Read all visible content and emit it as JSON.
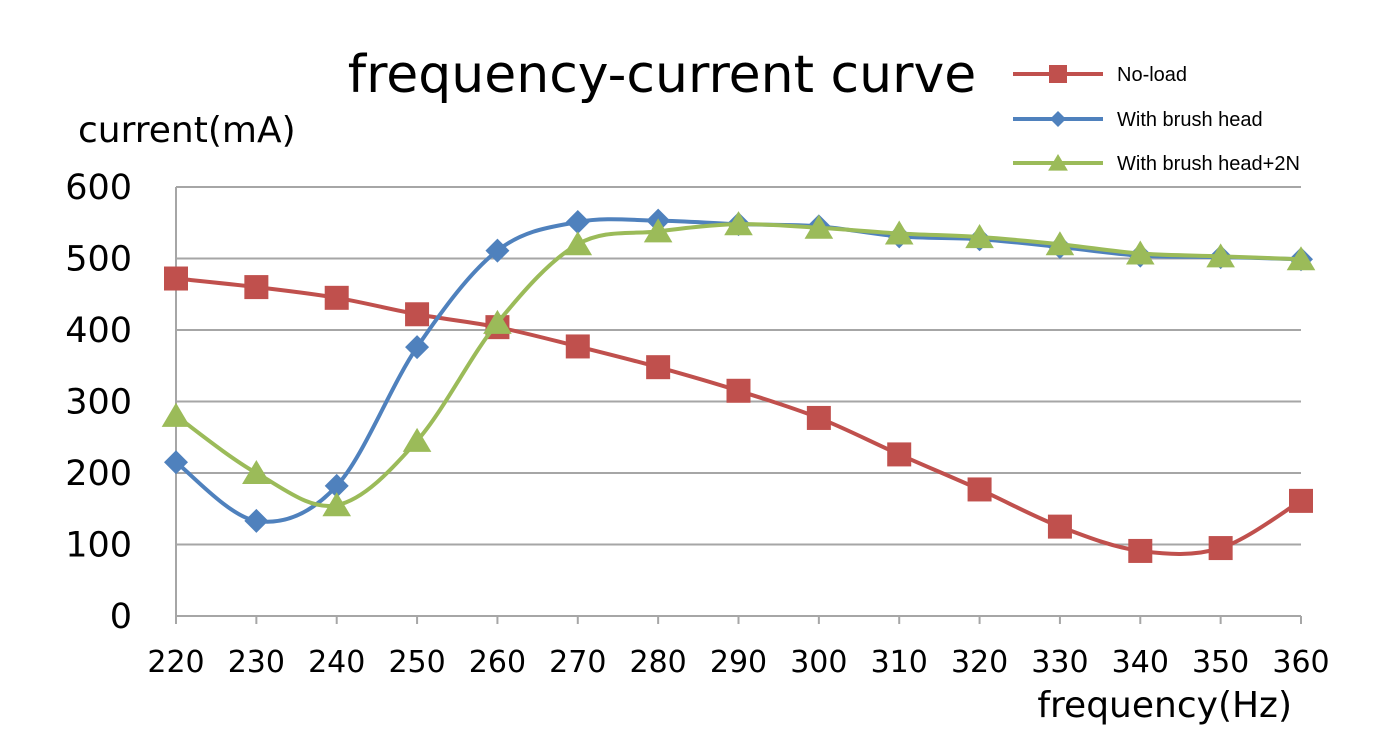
{
  "chart_data": {
    "type": "line",
    "title": "frequency-current curve",
    "xlabel": "frequency(Hz)",
    "ylabel": "current(mA)",
    "x": [
      220,
      230,
      240,
      250,
      260,
      270,
      280,
      290,
      300,
      310,
      320,
      330,
      340,
      350,
      360
    ],
    "xlim": [
      220,
      360
    ],
    "ylim": [
      0,
      600
    ],
    "yticks": [
      0,
      100,
      200,
      300,
      400,
      500,
      600
    ],
    "grid": true,
    "smooth": true,
    "legend_position": "top-right",
    "series": [
      {
        "name": "No-load",
        "marker": "square",
        "color": "#C0504D",
        "values": [
          472,
          460,
          445,
          422,
          404,
          377,
          348,
          315,
          277,
          226,
          177,
          125,
          91,
          95,
          161
        ]
      },
      {
        "name": "With brush head",
        "marker": "diamond",
        "color": "#4F81BD",
        "values": [
          215,
          133,
          182,
          376,
          511,
          551,
          553,
          548,
          545,
          531,
          527,
          516,
          504,
          502,
          499
        ]
      },
      {
        "name": "With brush head+2N",
        "marker": "triangle",
        "color": "#9BBB59",
        "values": [
          280,
          200,
          155,
          245,
          410,
          520,
          538,
          548,
          543,
          535,
          530,
          520,
          507,
          503,
          499
        ]
      }
    ]
  }
}
